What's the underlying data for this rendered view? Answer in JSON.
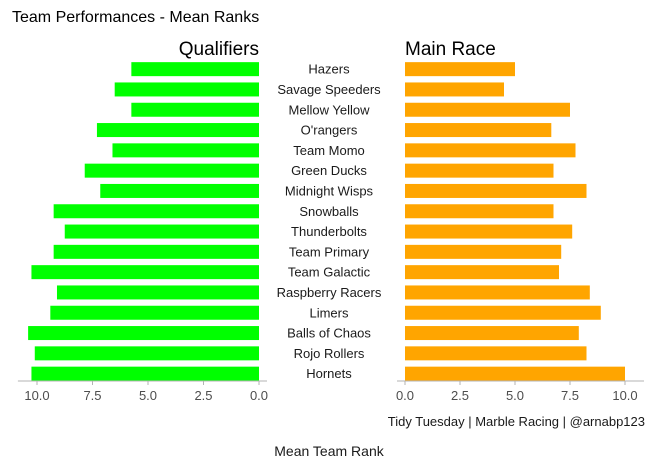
{
  "chart_data": {
    "type": "bar",
    "title": "Team Performances - Mean Ranks",
    "xlabel": "Mean Team Rank",
    "caption": "Tidy Tuesday | Marble Racing | @arnabp123",
    "teams": [
      "Hazers",
      "Savage Speeders",
      "Mellow Yellow",
      "O'rangers",
      "Team Momo",
      "Green Ducks",
      "Midnight Wisps",
      "Snowballs",
      "Thunderbolts",
      "Team Primary",
      "Team Galactic",
      "Raspberry Racers",
      "Limers",
      "Balls of Chaos",
      "Rojo Rollers",
      "Hornets"
    ],
    "series": [
      {
        "name": "Qualifiers",
        "color": "#00ff00",
        "direction": "reversed",
        "xlim": [
          0,
          10.5
        ],
        "ticks": [
          10.0,
          7.5,
          5.0,
          2.5,
          0.0
        ],
        "tick_labels": [
          "10.0",
          "7.5",
          "5.0",
          "2.5",
          "0.0"
        ],
        "values": [
          5.75,
          6.5,
          5.75,
          7.3,
          6.6,
          7.85,
          7.15,
          9.25,
          8.75,
          9.25,
          10.25,
          9.1,
          9.4,
          10.4,
          10.1,
          10.25
        ]
      },
      {
        "name": "Main Race",
        "color": "#ffa500",
        "direction": "normal",
        "xlim": [
          0,
          10.5
        ],
        "ticks": [
          0.0,
          2.5,
          5.0,
          7.5,
          10.0
        ],
        "tick_labels": [
          "0.0",
          "2.5",
          "5.0",
          "7.5",
          "10.0"
        ],
        "values": [
          5.0,
          4.5,
          7.5,
          6.65,
          7.75,
          6.75,
          8.25,
          6.75,
          7.6,
          7.1,
          7.0,
          8.4,
          8.9,
          7.9,
          8.25,
          10.0
        ]
      }
    ]
  }
}
